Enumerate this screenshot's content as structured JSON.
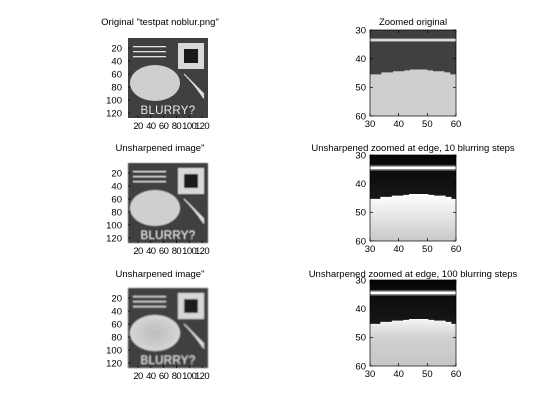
{
  "chart_data": [
    {
      "type": "heatmap",
      "title": "Original \"testpat noblur.png\"",
      "image_text": "BLURRY?",
      "blur_level": 0,
      "y_ticks": [
        "20",
        "40",
        "60",
        "80",
        "100",
        "120"
      ],
      "x_ticks": [
        "20",
        "40",
        "60",
        "80",
        "100",
        "120"
      ]
    },
    {
      "type": "heatmap",
      "title": "Zoomed original",
      "blur_level": 0,
      "xlim": [
        30,
        60
      ],
      "ylim": [
        30,
        60
      ],
      "y_ticks": [
        "30",
        "40",
        "50",
        "60"
      ],
      "x_ticks": [
        "30",
        "40",
        "50",
        "60"
      ]
    },
    {
      "type": "heatmap",
      "title": "Unsharpened image\"",
      "image_text": "BLURRY?",
      "blur_level": 10,
      "y_ticks": [
        "20",
        "40",
        "60",
        "80",
        "100",
        "120"
      ],
      "x_ticks": [
        "20",
        "40",
        "60",
        "80",
        "100",
        "120"
      ]
    },
    {
      "type": "heatmap",
      "title": "Unsharpened zoomed at edge, 10 blurring steps",
      "blur_level": 10,
      "xlim": [
        30,
        60
      ],
      "ylim": [
        30,
        60
      ],
      "y_ticks": [
        "30",
        "40",
        "50",
        "60"
      ],
      "x_ticks": [
        "30",
        "40",
        "50",
        "60"
      ]
    },
    {
      "type": "heatmap",
      "title": "Unsharpened image\"",
      "image_text": "BLURRY?",
      "blur_level": 100,
      "y_ticks": [
        "20",
        "40",
        "60",
        "80",
        "100",
        "120"
      ],
      "x_ticks": [
        "20",
        "40",
        "60",
        "80",
        "100",
        "120"
      ]
    },
    {
      "type": "heatmap",
      "title": "Unsharpened zoomed at edge, 100 blurring steps",
      "blur_level": 100,
      "xlim": [
        30,
        60
      ],
      "ylim": [
        30,
        60
      ],
      "y_ticks": [
        "30",
        "40",
        "50",
        "60"
      ],
      "x_ticks": [
        "30",
        "40",
        "50",
        "60"
      ]
    }
  ],
  "colors": {
    "background": "#ffffff",
    "image_dark": "#404040",
    "image_light": "#cfcfcf",
    "stripe": "#ededed",
    "axis": "#000000"
  }
}
